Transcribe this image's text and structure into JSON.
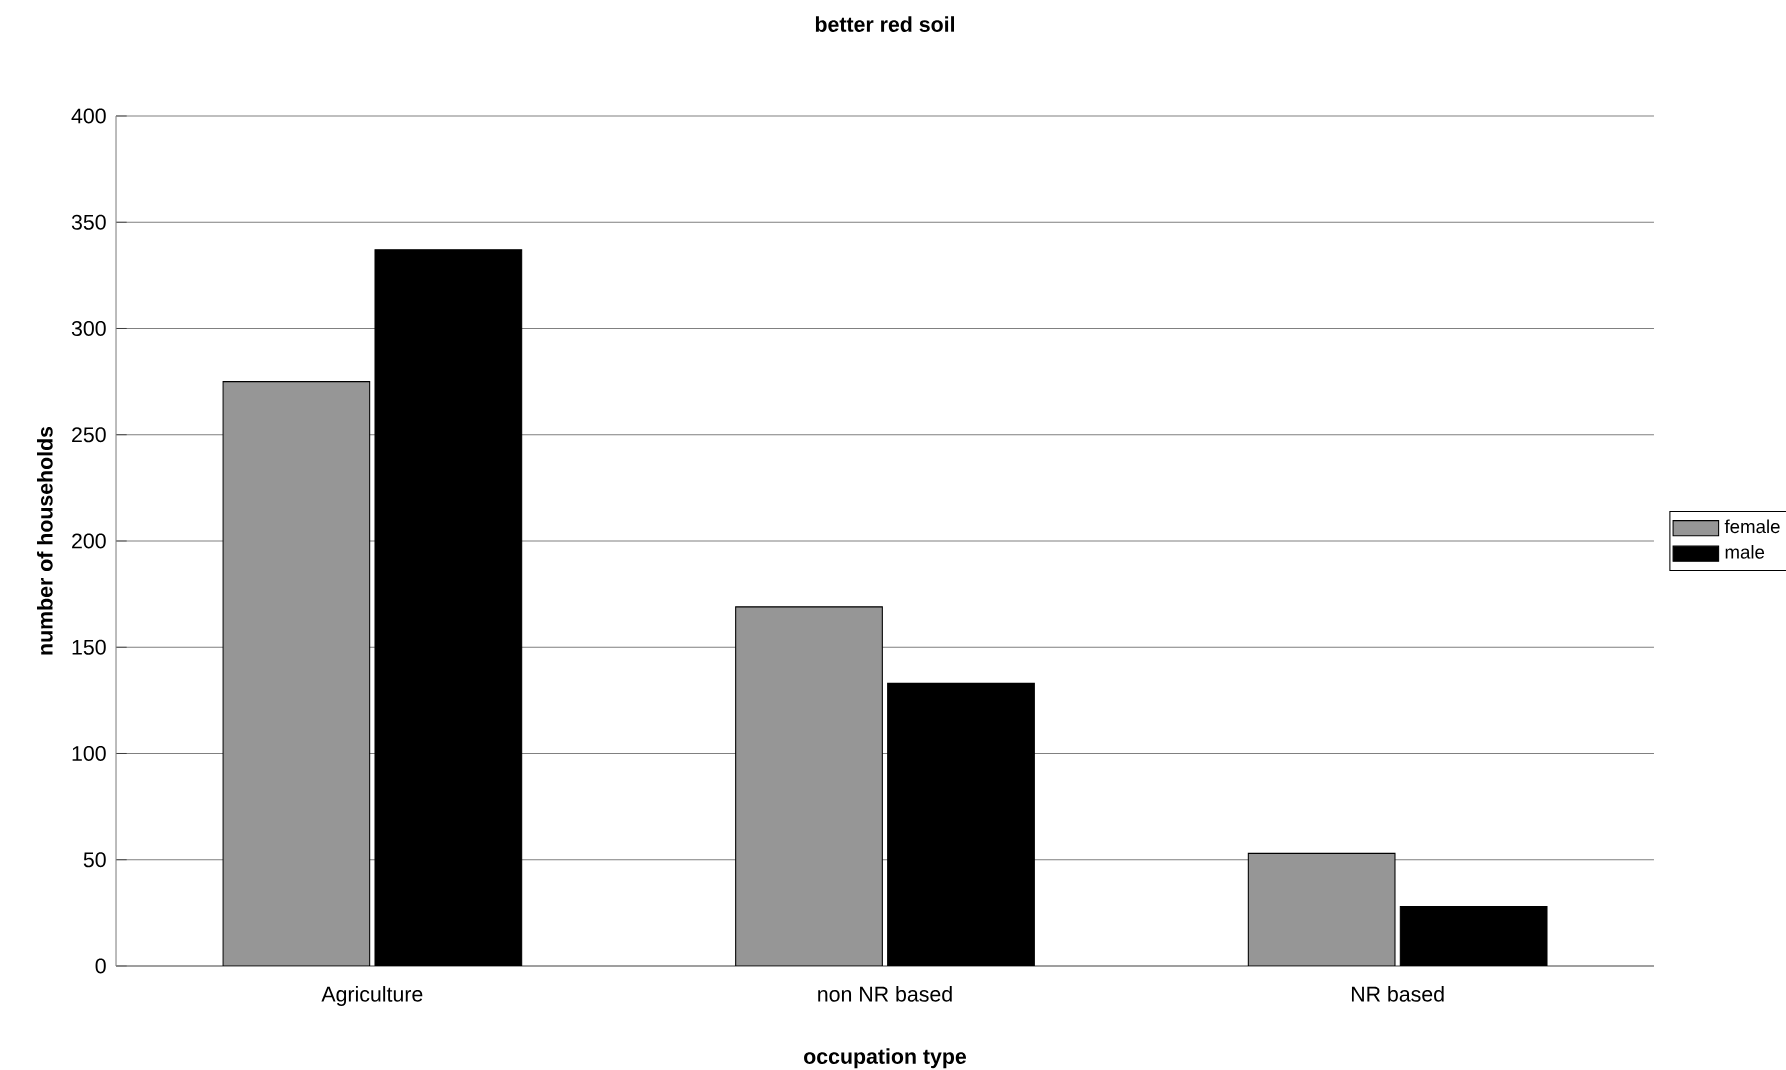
{
  "chart_data": {
    "type": "bar",
    "title": "better red soil",
    "xlabel": "occupation type",
    "ylabel": "number of households",
    "categories": [
      "Agriculture",
      "non NR based",
      "NR based"
    ],
    "series": [
      {
        "name": "female",
        "color": "#969696",
        "values": [
          275,
          169,
          53
        ]
      },
      {
        "name": "male",
        "color": "#000000",
        "values": [
          337,
          133,
          28
        ]
      }
    ],
    "ylim": [
      0,
      400
    ],
    "yticks": [
      0,
      50,
      100,
      150,
      200,
      250,
      300,
      350,
      400
    ],
    "grid": "y",
    "legend": "right"
  }
}
